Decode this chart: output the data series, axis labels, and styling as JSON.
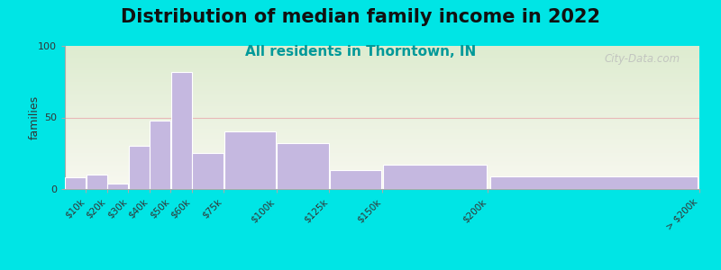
{
  "title": "Distribution of median family income in 2022",
  "subtitle": "All residents in Thorntown, IN",
  "ylabel": "families",
  "background_color": "#00e5e5",
  "plot_bg_top": "#deecd0",
  "plot_bg_bottom": "#f8f8f0",
  "bar_color": "#c5b8e0",
  "bar_edge_color": "#ffffff",
  "bin_edges": [
    0,
    10,
    20,
    30,
    40,
    50,
    60,
    75,
    100,
    125,
    150,
    200,
    300
  ],
  "values": [
    8,
    10,
    4,
    30,
    48,
    82,
    25,
    40,
    32,
    13,
    17,
    9
  ],
  "ylim": [
    0,
    100
  ],
  "yticks": [
    0,
    50,
    100
  ],
  "grid_color": "#e8b8b8",
  "watermark": "City-Data.com",
  "title_fontsize": 15,
  "subtitle_fontsize": 11,
  "subtitle_color": "#009999",
  "tick_labels": [
    "$10k",
    "$20k",
    "$30k",
    "$40k",
    "$50k",
    "$60k",
    "$75k",
    "$100k",
    "$125k",
    "$150k",
    "$200k",
    "> $200k"
  ]
}
